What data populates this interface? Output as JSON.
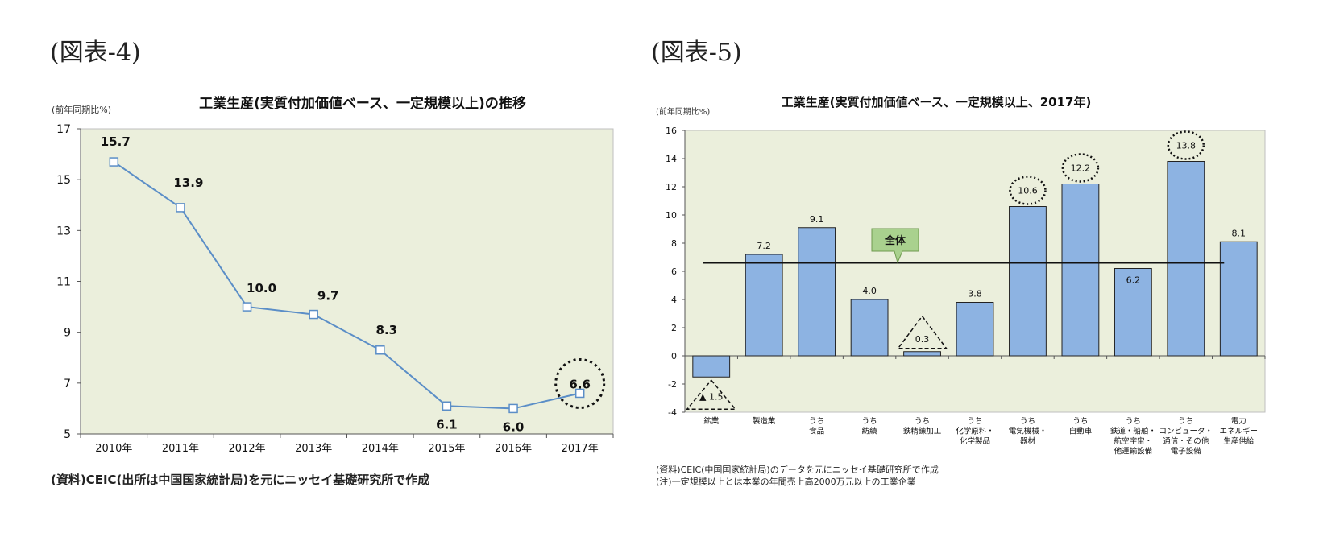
{
  "figures": [
    {
      "label": "(図表-4)"
    },
    {
      "label": "(図表-5)"
    }
  ],
  "chart_data": [
    {
      "type": "line",
      "title": "工業生産(実質付加価値ベース、一定規模以上)の推移",
      "ylabel": "(前年同期比%)",
      "xlabel": "",
      "categories": [
        "2010年",
        "2011年",
        "2012年",
        "2013年",
        "2014年",
        "2015年",
        "2016年",
        "2017年"
      ],
      "series": [
        {
          "values": [
            15.7,
            13.9,
            10.0,
            9.7,
            8.3,
            6.1,
            6.0,
            6.6
          ],
          "labels": [
            "15.7",
            "13.9",
            "10.0",
            "9.7",
            "8.3",
            "6.1",
            "6.0",
            "6.6"
          ]
        }
      ],
      "ylim": [
        5,
        17
      ],
      "yticks": [
        "5",
        "7",
        "9",
        "11",
        "13",
        "15",
        "17"
      ],
      "highlight_category": "2017年",
      "grid": false,
      "colors": {
        "line": "#5b8ec7",
        "background": "#ebefdc"
      },
      "source": "(資料)CEIC(出所は中国国家統計局)を元にニッセイ基礎研究所で作成"
    },
    {
      "type": "bar",
      "title": "工業生産(実質付加価値ベース、一定規模以上、2017年)",
      "ylabel": "(前年同期比%)",
      "xlabel": "",
      "categories": [
        [
          "鉱業"
        ],
        [
          "製造業"
        ],
        [
          "うち",
          "食品"
        ],
        [
          "うち",
          "紡績"
        ],
        [
          "うち",
          "鉄精錬加工"
        ],
        [
          "うち",
          "化学原料・",
          "化学製品"
        ],
        [
          "うち",
          "電気機械・",
          "器材"
        ],
        [
          "うち",
          "自動車"
        ],
        [
          "うち",
          "鉄道・船舶・",
          "航空宇宙・",
          "他運輸設備"
        ],
        [
          "うち",
          "コンピュータ・",
          "通信・その他",
          "電子設備"
        ],
        [
          "電力",
          "エネルギー",
          "生産供給"
        ]
      ],
      "values": [
        -1.5,
        7.2,
        9.1,
        4.0,
        0.3,
        3.8,
        10.6,
        12.2,
        6.2,
        13.8,
        8.1
      ],
      "value_labels": [
        "▲ 1.5",
        "7.2",
        "9.1",
        "4.0",
        "0.3",
        "3.8",
        "10.6",
        "12.2",
        "6.2",
        "13.8",
        "8.1"
      ],
      "ylim": [
        -4,
        16
      ],
      "yticks": [
        "-4",
        "-2",
        "0",
        "2",
        "4",
        "6",
        "8",
        "10",
        "12",
        "14",
        "16"
      ],
      "overall": {
        "label": "全体",
        "value": 6.6
      },
      "highlight_circles": [
        6,
        7,
        9
      ],
      "highlight_triangles": [
        0,
        4
      ],
      "colors": {
        "bar": "#8db3e2",
        "background": "#ebefdc",
        "callout": "#a9d18e"
      },
      "source": "(資料)CEIC(中国国家統計局)のデータを元にニッセイ基礎研究所で作成",
      "note": "(注)一定規模以上とは本業の年間売上高2000万元以上の工業企業"
    }
  ]
}
